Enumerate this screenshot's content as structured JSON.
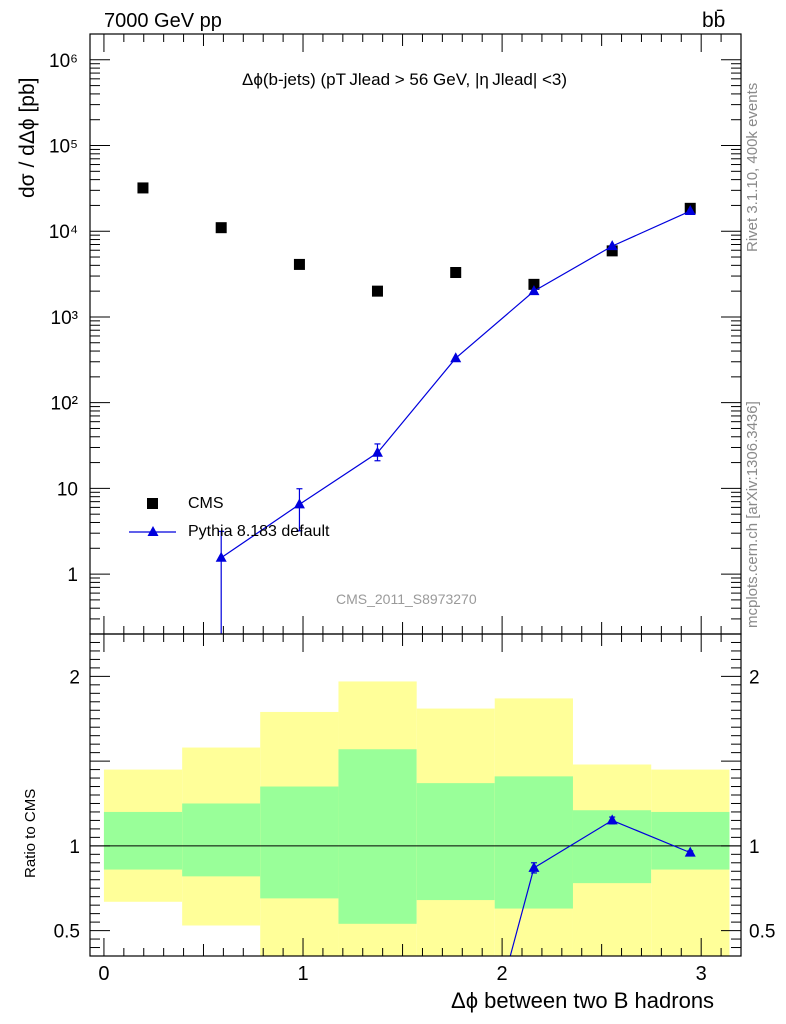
{
  "header": {
    "energy_label": "7000 GeV pp",
    "process_label": "bb̄"
  },
  "side_labels": {
    "generator_info": "Rivet 3.1.10,  400k events",
    "source_info": "mcplots.cern.ch [arXiv:1306.3436]"
  },
  "main_title": "Δϕ(b-jets) (pT Jlead >  56 GeV, |η Jlead| <3)",
  "watermark": "CMS_2011_S8973270",
  "colors": {
    "data_marker": "#000000",
    "mc_line": "#0000dd",
    "band_inner": "#99ff99",
    "band_outer": "#ffff99",
    "axis": "#000000"
  },
  "chart_data": [
    {
      "type": "scatter",
      "panel": "main",
      "title": "",
      "ylabel": "dσ / dΔϕ [pb]",
      "yscale": "log",
      "ylim": [
        0.2,
        2000000
      ],
      "xlim": [
        -0.07,
        3.2
      ],
      "y_tick_labels": [
        "1",
        "10",
        "10²",
        "10³",
        "10⁴",
        "10⁵",
        "10⁶"
      ],
      "legend_placement": "bottom-left",
      "series": [
        {
          "name": "CMS",
          "marker": "square",
          "x": [
            0.196,
            0.589,
            0.982,
            1.374,
            1.767,
            2.16,
            2.553,
            2.945
          ],
          "y": [
            32000,
            11000,
            4100,
            2000,
            3300,
            2400,
            5900,
            18500
          ]
        },
        {
          "name": "Pythia 8.183 default",
          "marker": "triangle",
          "x": [
            0.589,
            0.982,
            1.374,
            1.767,
            2.16,
            2.553,
            2.945
          ],
          "y": [
            1.55,
            6.5,
            26,
            330,
            2000,
            6700,
            17200
          ],
          "yerr_low": [
            1.5,
            3.3,
            5,
            20,
            100,
            300,
            600
          ],
          "yerr_high": [
            1.6,
            3.4,
            7,
            20,
            100,
            300,
            600
          ]
        }
      ]
    },
    {
      "type": "line",
      "panel": "ratio",
      "ylabel": "Ratio to CMS",
      "xlabel": "Δϕ between two B hadrons",
      "xlim": [
        -0.07,
        3.2
      ],
      "ylim": [
        0.35,
        2.25
      ],
      "x_tick_labels": [
        "0",
        "1",
        "2",
        "3"
      ],
      "y_tick_labels": [
        "0.5",
        "1",
        "2"
      ],
      "bin_edges": [
        0.0,
        0.393,
        0.785,
        1.178,
        1.571,
        1.963,
        2.356,
        2.749,
        3.142
      ],
      "band_inner": {
        "low": [
          0.86,
          0.82,
          0.69,
          0.54,
          0.68,
          0.63,
          0.78,
          0.86
        ],
        "high": [
          1.2,
          1.25,
          1.35,
          1.57,
          1.37,
          1.41,
          1.21,
          1.2
        ]
      },
      "band_outer": {
        "low": [
          0.67,
          0.53,
          0.3,
          0.3,
          0.3,
          0.3,
          0.3,
          0.3
        ],
        "high": [
          1.45,
          1.58,
          1.79,
          1.97,
          1.81,
          1.87,
          1.48,
          1.45
        ]
      },
      "series": [
        {
          "name": "Pythia 8.183 default",
          "x": [
            2.041,
            2.16,
            2.553,
            2.945
          ],
          "y": [
            0.35,
            0.87,
            1.15,
            0.96
          ],
          "marker_indices": [
            1,
            2,
            3
          ],
          "yerr": [
            0,
            0.03,
            0.02,
            0.01
          ]
        }
      ]
    }
  ]
}
